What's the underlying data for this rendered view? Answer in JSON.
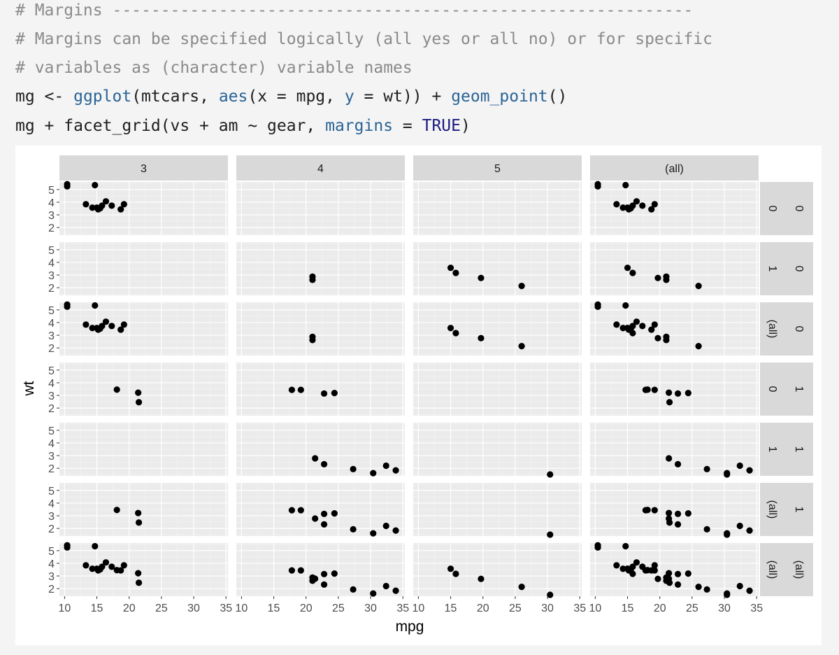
{
  "code": {
    "lines": [
      [
        {
          "t": "# Margins ------------------------------------------------------------",
          "c": "cm"
        }
      ],
      [
        {
          "t": "# Margins can be specified logically (all yes or all no) or for specific",
          "c": "cm"
        }
      ],
      [
        {
          "t": "# variables as (character) variable names",
          "c": "cm"
        }
      ],
      [
        {
          "t": "mg <- ",
          "c": ""
        },
        {
          "t": "ggplot",
          "c": "fn"
        },
        {
          "t": "(mtcars, ",
          "c": ""
        },
        {
          "t": "aes",
          "c": "fn"
        },
        {
          "t": "(x = mpg, ",
          "c": ""
        },
        {
          "t": "y",
          "c": "fn"
        },
        {
          "t": " = wt)) + ",
          "c": ""
        },
        {
          "t": "geom_point",
          "c": "fn"
        },
        {
          "t": "()",
          "c": ""
        }
      ],
      [
        {
          "t": "mg + facet_grid(vs + am ~ gear, ",
          "c": ""
        },
        {
          "t": "margins",
          "c": "fn"
        },
        {
          "t": " = ",
          "c": ""
        },
        {
          "t": "TRUE",
          "c": "kw"
        },
        {
          "t": ")",
          "c": ""
        }
      ]
    ]
  },
  "chart_data": {
    "type": "scatter",
    "xlabel": "mpg",
    "ylabel": "wt",
    "xlim": [
      9.2,
      35.3
    ],
    "ylim": [
      1.4,
      5.6
    ],
    "xticks": [
      10,
      15,
      20,
      25,
      30,
      35
    ],
    "yticks": [
      2,
      3,
      4,
      5
    ],
    "xtick_labels": [
      "10",
      "15",
      "20",
      "25",
      "30",
      "35"
    ],
    "ytick_labels": [
      "2",
      "3",
      "4",
      "5"
    ],
    "grid": true,
    "col_facets": [
      "3",
      "4",
      "5",
      "(all)"
    ],
    "row_facets": [
      [
        "0",
        "0"
      ],
      [
        "0",
        "1"
      ],
      [
        "0",
        "(all)"
      ],
      [
        "1",
        "0"
      ],
      [
        "1",
        "1"
      ],
      [
        "1",
        "(all)"
      ],
      [
        "(all)",
        "(all)"
      ]
    ],
    "panels": [
      [
        {
          "x": [
            10.4,
            10.4,
            14.7,
            13.3,
            14.3,
            15.0,
            15.2,
            15.5,
            15.8,
            16.4,
            17.3,
            18.7,
            19.2
          ],
          "y": [
            5.25,
            5.42,
            5.35,
            3.84,
            3.57,
            3.57,
            3.44,
            3.52,
            3.73,
            4.07,
            3.73,
            3.44,
            3.84
          ]
        },
        {
          "x": [],
          "y": []
        },
        {
          "x": [],
          "y": []
        },
        {
          "x": [
            10.4,
            10.4,
            14.7,
            13.3,
            14.3,
            15.0,
            15.2,
            15.5,
            15.8,
            16.4,
            17.3,
            18.7,
            19.2
          ],
          "y": [
            5.25,
            5.42,
            5.35,
            3.84,
            3.57,
            3.57,
            3.44,
            3.52,
            3.73,
            4.07,
            3.73,
            3.44,
            3.84
          ]
        }
      ],
      [
        {
          "x": [],
          "y": []
        },
        {
          "x": [
            21.0,
            21.0
          ],
          "y": [
            2.62,
            2.875
          ]
        },
        {
          "x": [
            15.0,
            15.8,
            19.7,
            26.0
          ],
          "y": [
            3.57,
            3.17,
            2.77,
            2.14
          ]
        },
        {
          "x": [
            21.0,
            21.0,
            15.0,
            15.8,
            19.7,
            26.0
          ],
          "y": [
            2.62,
            2.875,
            3.57,
            3.17,
            2.77,
            2.14
          ]
        }
      ],
      [
        {
          "x": [
            10.4,
            10.4,
            14.7,
            13.3,
            14.3,
            15.0,
            15.2,
            15.5,
            15.8,
            16.4,
            17.3,
            18.7,
            19.2
          ],
          "y": [
            5.25,
            5.42,
            5.35,
            3.84,
            3.57,
            3.57,
            3.44,
            3.52,
            3.73,
            4.07,
            3.73,
            3.44,
            3.84
          ]
        },
        {
          "x": [
            21.0,
            21.0
          ],
          "y": [
            2.62,
            2.875
          ]
        },
        {
          "x": [
            15.0,
            15.8,
            19.7,
            26.0
          ],
          "y": [
            3.57,
            3.17,
            2.77,
            2.14
          ]
        },
        {
          "x": [
            10.4,
            10.4,
            14.7,
            13.3,
            14.3,
            15.0,
            15.2,
            15.5,
            15.8,
            16.4,
            17.3,
            18.7,
            19.2,
            21.0,
            21.0,
            15.0,
            15.8,
            19.7,
            26.0
          ],
          "y": [
            5.25,
            5.42,
            5.35,
            3.84,
            3.57,
            3.57,
            3.44,
            3.52,
            3.73,
            4.07,
            3.73,
            3.44,
            3.84,
            2.62,
            2.875,
            3.57,
            3.17,
            2.77,
            2.14
          ]
        }
      ],
      [
        {
          "x": [
            18.1,
            21.4,
            21.5
          ],
          "y": [
            3.46,
            3.215,
            2.465
          ]
        },
        {
          "x": [
            17.8,
            19.2,
            22.8,
            24.4
          ],
          "y": [
            3.44,
            3.44,
            3.15,
            3.19
          ]
        },
        {
          "x": [],
          "y": []
        },
        {
          "x": [
            18.1,
            21.4,
            21.5,
            17.8,
            19.2,
            22.8,
            24.4
          ],
          "y": [
            3.46,
            3.215,
            2.465,
            3.44,
            3.44,
            3.15,
            3.19
          ]
        }
      ],
      [
        {
          "x": [],
          "y": []
        },
        {
          "x": [
            21.4,
            22.8,
            27.3,
            30.4,
            32.4,
            33.9
          ],
          "y": [
            2.78,
            2.32,
            1.935,
            1.615,
            2.2,
            1.835
          ]
        },
        {
          "x": [
            30.4
          ],
          "y": [
            1.513
          ]
        },
        {
          "x": [
            21.4,
            22.8,
            27.3,
            30.4,
            32.4,
            33.9,
            30.4
          ],
          "y": [
            2.78,
            2.32,
            1.935,
            1.615,
            2.2,
            1.835,
            1.513
          ]
        }
      ],
      [
        {
          "x": [
            18.1,
            21.4,
            21.5
          ],
          "y": [
            3.46,
            3.215,
            2.465
          ]
        },
        {
          "x": [
            17.8,
            19.2,
            22.8,
            24.4,
            21.4,
            22.8,
            27.3,
            30.4,
            32.4,
            33.9
          ],
          "y": [
            3.44,
            3.44,
            3.15,
            3.19,
            2.78,
            2.32,
            1.935,
            1.615,
            2.2,
            1.835
          ]
        },
        {
          "x": [
            30.4
          ],
          "y": [
            1.513
          ]
        },
        {
          "x": [
            18.1,
            21.4,
            21.5,
            17.8,
            19.2,
            22.8,
            24.4,
            21.4,
            22.8,
            27.3,
            30.4,
            32.4,
            33.9,
            30.4
          ],
          "y": [
            3.46,
            3.215,
            2.465,
            3.44,
            3.44,
            3.15,
            3.19,
            2.78,
            2.32,
            1.935,
            1.615,
            2.2,
            1.835,
            1.513
          ]
        }
      ],
      [
        {
          "x": [
            10.4,
            10.4,
            14.7,
            13.3,
            14.3,
            15.0,
            15.2,
            15.5,
            15.8,
            16.4,
            17.3,
            18.7,
            19.2,
            18.1,
            21.4,
            21.5
          ],
          "y": [
            5.25,
            5.42,
            5.35,
            3.84,
            3.57,
            3.57,
            3.44,
            3.52,
            3.73,
            4.07,
            3.73,
            3.44,
            3.84,
            3.46,
            3.215,
            2.465
          ]
        },
        {
          "x": [
            21.0,
            21.0,
            17.8,
            19.2,
            22.8,
            24.4,
            21.4,
            22.8,
            27.3,
            30.4,
            32.4,
            33.9
          ],
          "y": [
            2.62,
            2.875,
            3.44,
            3.44,
            3.15,
            3.19,
            2.78,
            2.32,
            1.935,
            1.615,
            2.2,
            1.835
          ]
        },
        {
          "x": [
            15.0,
            15.8,
            19.7,
            26.0,
            30.4
          ],
          "y": [
            3.57,
            3.17,
            2.77,
            2.14,
            1.513
          ]
        },
        {
          "x": [
            10.4,
            10.4,
            14.7,
            13.3,
            14.3,
            15.0,
            15.2,
            15.5,
            15.8,
            16.4,
            17.3,
            18.7,
            19.2,
            18.1,
            21.4,
            21.5,
            21.0,
            21.0,
            17.8,
            19.2,
            22.8,
            24.4,
            21.4,
            22.8,
            27.3,
            30.4,
            32.4,
            33.9,
            15.0,
            15.8,
            19.7,
            26.0,
            30.4
          ],
          "y": [
            5.25,
            5.42,
            5.35,
            3.84,
            3.57,
            3.57,
            3.44,
            3.52,
            3.73,
            4.07,
            3.73,
            3.44,
            3.84,
            3.46,
            3.215,
            2.465,
            2.62,
            2.875,
            3.44,
            3.44,
            3.15,
            3.19,
            2.78,
            2.32,
            1.935,
            1.615,
            2.2,
            1.835,
            3.57,
            3.17,
            2.77,
            2.14,
            1.513
          ]
        }
      ]
    ]
  },
  "colors": {
    "panel_bg": "#ebebeb",
    "grid_major": "#ffffff",
    "strip_bg": "#d9d9d9",
    "point": "#000000",
    "tick_text": "#4d4d4d",
    "axis_title": "#000000"
  }
}
